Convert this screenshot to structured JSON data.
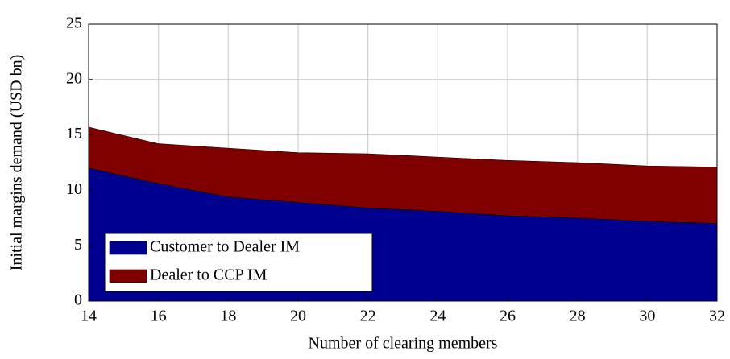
{
  "chart_data": {
    "type": "stacked_area",
    "x": [
      14,
      16,
      18,
      20,
      22,
      24,
      26,
      28,
      30,
      32
    ],
    "series": [
      {
        "name": "Customer to Dealer IM",
        "color": "#000090",
        "values": [
          12.0,
          10.6,
          9.4,
          8.9,
          8.4,
          8.1,
          7.7,
          7.5,
          7.2,
          7.0
        ]
      },
      {
        "name": "Dealer to CCP IM",
        "color": "#800000",
        "values": [
          3.7,
          3.6,
          4.4,
          4.5,
          4.9,
          4.9,
          5.0,
          5.0,
          5.0,
          5.1
        ]
      }
    ],
    "xlabel": "Number of clearing members",
    "ylabel": "Initial margins demand (USD bn)",
    "xlim": [
      14,
      32
    ],
    "xticks": [
      14,
      16,
      18,
      20,
      22,
      24,
      26,
      28,
      30,
      32
    ],
    "ylim": [
      0,
      25
    ],
    "yticks": [
      0,
      5,
      10,
      15,
      20,
      25
    ],
    "grid": true,
    "legend": "lower left"
  }
}
